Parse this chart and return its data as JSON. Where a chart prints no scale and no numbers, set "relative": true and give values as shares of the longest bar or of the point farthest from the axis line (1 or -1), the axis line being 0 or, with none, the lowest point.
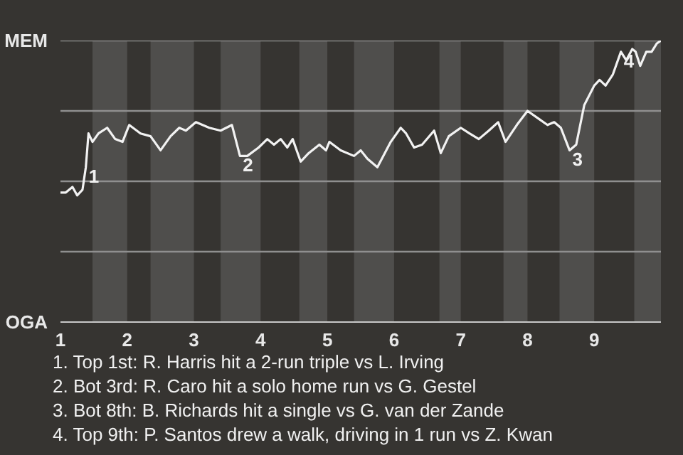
{
  "chart_data": {
    "type": "line",
    "relative": true,
    "x": [
      1.0,
      1.08,
      1.18,
      1.25,
      1.33,
      1.38,
      1.42,
      1.48,
      1.57,
      1.7,
      1.82,
      1.93,
      2.03,
      2.2,
      2.35,
      2.5,
      2.65,
      2.78,
      2.88,
      3.03,
      3.23,
      3.4,
      3.57,
      3.69,
      3.8,
      3.97,
      4.1,
      4.2,
      4.3,
      4.4,
      4.48,
      4.6,
      4.72,
      4.88,
      4.98,
      5.03,
      5.2,
      5.4,
      5.5,
      5.6,
      5.75,
      5.95,
      6.1,
      6.18,
      6.3,
      6.42,
      6.6,
      6.7,
      6.82,
      7.0,
      7.13,
      7.27,
      7.42,
      7.56,
      7.67,
      7.84,
      8.0,
      8.18,
      8.3,
      8.4,
      8.5,
      8.63,
      8.73,
      8.85,
      9.0,
      9.08,
      9.17,
      9.28,
      9.4,
      9.48,
      9.57,
      9.62,
      9.69,
      9.78,
      9.86,
      9.94,
      10.0
    ],
    "series": [
      {
        "color": "#f2f2f2",
        "values": [
          0.46,
          0.46,
          0.48,
          0.45,
          0.47,
          0.55,
          0.67,
          0.64,
          0.67,
          0.69,
          0.65,
          0.64,
          0.7,
          0.67,
          0.66,
          0.61,
          0.66,
          0.69,
          0.68,
          0.71,
          0.69,
          0.68,
          0.7,
          0.59,
          0.59,
          0.62,
          0.65,
          0.63,
          0.65,
          0.62,
          0.65,
          0.57,
          0.6,
          0.63,
          0.61,
          0.64,
          0.61,
          0.59,
          0.61,
          0.58,
          0.55,
          0.64,
          0.69,
          0.67,
          0.62,
          0.63,
          0.68,
          0.6,
          0.66,
          0.69,
          0.67,
          0.65,
          0.68,
          0.71,
          0.64,
          0.7,
          0.75,
          0.72,
          0.7,
          0.71,
          0.69,
          0.61,
          0.63,
          0.77,
          0.84,
          0.86,
          0.84,
          0.88,
          0.96,
          0.93,
          0.97,
          0.96,
          0.91,
          0.96,
          0.96,
          0.99,
          1.0
        ]
      }
    ],
    "xlim": [
      1,
      10
    ],
    "xticks": [
      1,
      2,
      3,
      4,
      5,
      6,
      7,
      8,
      9
    ],
    "line_style": "solid",
    "ref_lines": [
      {
        "axis": "y",
        "value": 0.25,
        "color": "#8f8f8f"
      },
      {
        "axis": "y",
        "value": 0.5,
        "color": "#8f8f8f"
      },
      {
        "axis": "y",
        "value": 0.75,
        "color": "#8f8f8f"
      },
      {
        "axis": "y",
        "value": 1,
        "color": "#8f8f8f"
      }
    ],
    "bands": [
      {
        "axis": "x",
        "from": 1.48,
        "to": 2,
        "color": "#4f4e4c"
      },
      {
        "axis": "x",
        "from": 2.35,
        "to": 3,
        "color": "#4f4e4c"
      },
      {
        "axis": "x",
        "from": 3.4,
        "to": 4,
        "color": "#4f4e4c"
      },
      {
        "axis": "x",
        "from": 4.58,
        "to": 5,
        "color": "#4f4e4c"
      },
      {
        "axis": "x",
        "from": 5.4,
        "to": 6,
        "color": "#4f4e4c"
      },
      {
        "axis": "x",
        "from": 6.68,
        "to": 7,
        "color": "#4f4e4c"
      },
      {
        "axis": "x",
        "from": 7.64,
        "to": 8,
        "color": "#4f4e4c"
      },
      {
        "axis": "x",
        "from": 8.48,
        "to": 9,
        "color": "#4f4e4c"
      },
      {
        "axis": "x",
        "from": 9.6,
        "to": 10,
        "color": "#4f4e4c"
      }
    ],
    "annotations": [
      "MEM",
      "OGA",
      {
        "text": "1",
        "x": 1.38,
        "y": 0.55
      },
      {
        "text": "2",
        "x": 3.69,
        "y": 0.59
      },
      {
        "text": "3",
        "x": 8.63,
        "y": 0.61
      },
      {
        "text": "4",
        "x": 9.4,
        "y": 0.96
      },
      "1. Top 1st: R. Harris hit a 2-run triple vs L. Irving",
      "2. Bot 3rd: R. Caro hit a solo home run vs G. Gestel",
      "3. Bot 8th: B. Richards hit a single vs G. van der Zande",
      "4. Top 9th: P. Santos drew a walk, driving in 1 run vs Z. Kwan"
    ]
  }
}
